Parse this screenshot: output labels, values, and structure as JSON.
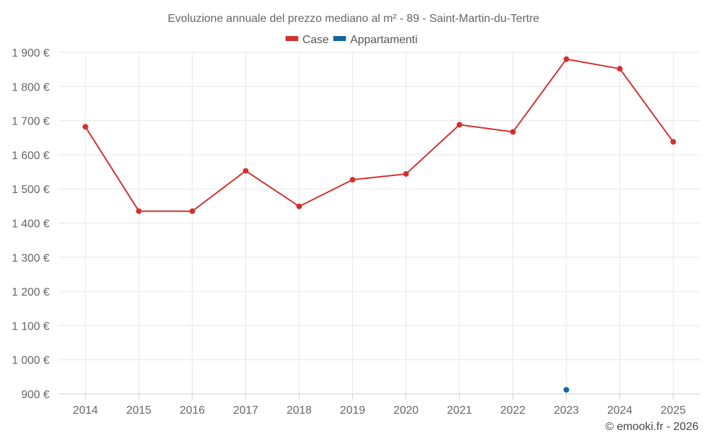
{
  "chart_data": {
    "type": "line",
    "title": "Evoluzione annuale del prezzo mediano al m² - 89 - Saint-Martin-du-Tertre",
    "categories": [
      "2014",
      "2015",
      "2016",
      "2017",
      "2018",
      "2019",
      "2020",
      "2021",
      "2022",
      "2023",
      "2024",
      "2025"
    ],
    "series": [
      {
        "name": "Case",
        "color": "#d32f2f",
        "values": [
          1682,
          1435,
          1435,
          1553,
          1449,
          1527,
          1544,
          1688,
          1667,
          1880,
          1852,
          1638
        ]
      },
      {
        "name": "Appartamenti",
        "color": "#1565a0",
        "values": [
          null,
          null,
          null,
          null,
          null,
          null,
          null,
          null,
          null,
          912,
          null,
          null
        ]
      }
    ],
    "ylim": [
      900,
      1900
    ],
    "yticks": [
      900,
      1000,
      1100,
      1200,
      1300,
      1400,
      1500,
      1600,
      1700,
      1800,
      1900
    ],
    "ytick_labels": [
      "900 €",
      "1 000 €",
      "1 100 €",
      "1 200 €",
      "1 300 €",
      "1 400 €",
      "1 500 €",
      "1 600 €",
      "1 700 €",
      "1 800 €",
      "1 900 €"
    ],
    "xlabel": "",
    "ylabel": "",
    "grid": true,
    "legend_position": "top-center"
  },
  "credit": "© emooki.fr - 2026"
}
